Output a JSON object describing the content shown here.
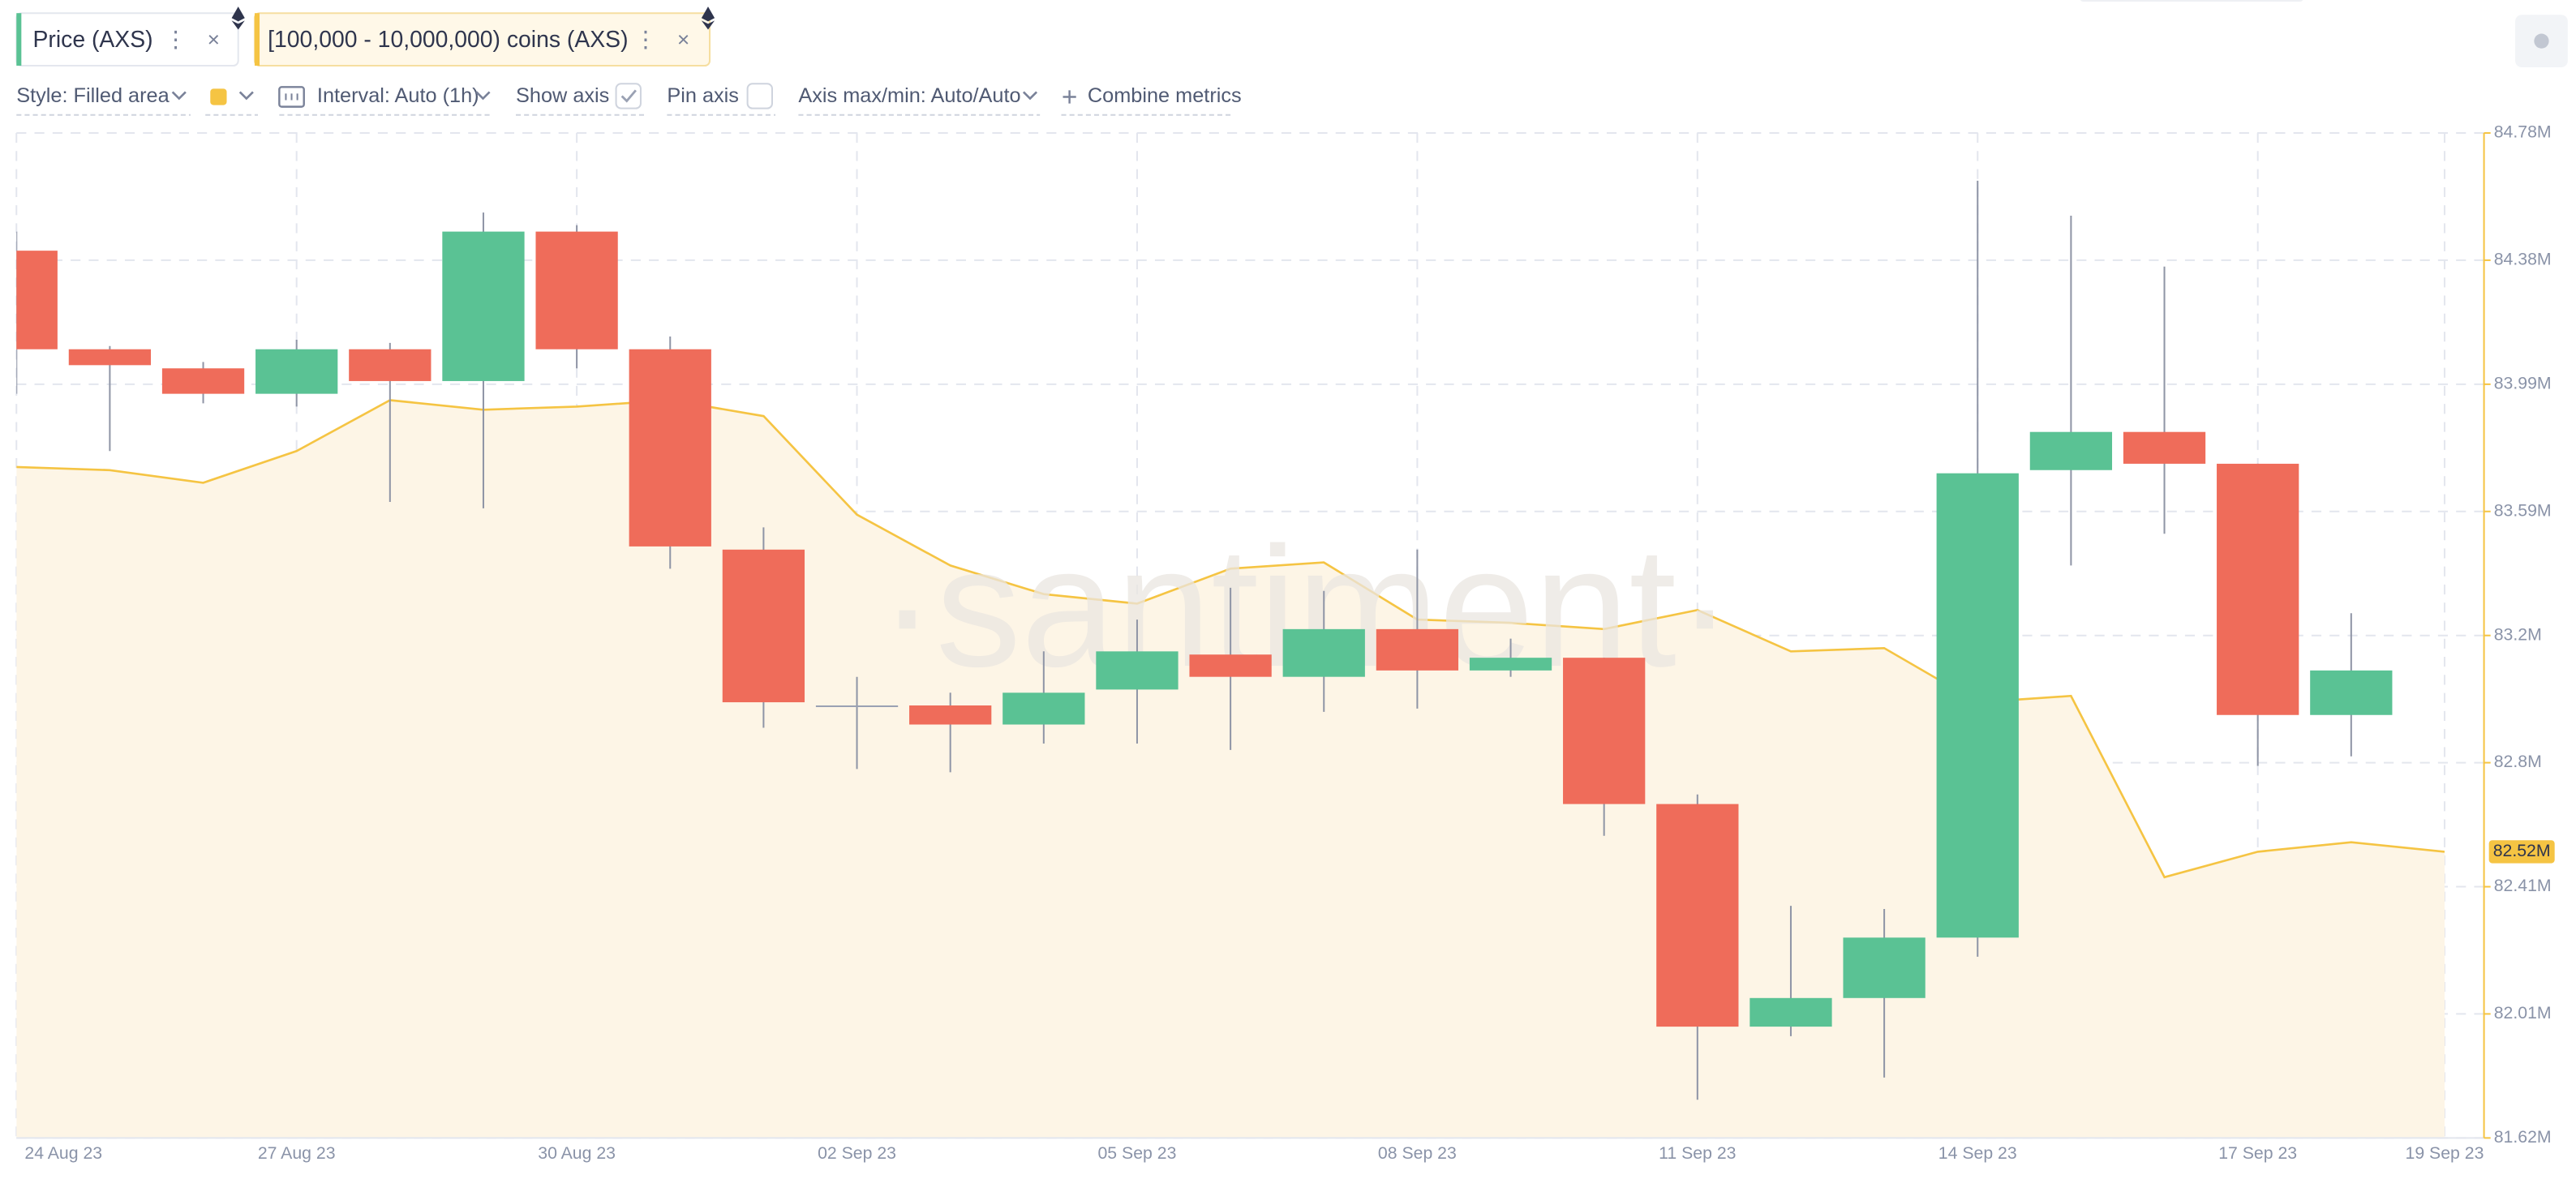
{
  "metrics": [
    {
      "label": "Price (AXS)",
      "color": "#5ac294"
    },
    {
      "label": "[100,000 - 10,000,000) coins (AXS)",
      "color": "#f5c443"
    }
  ],
  "toolbar": {
    "style": "Style: Filled area",
    "interval": "Interval: Auto (1h)",
    "show_axis": "Show axis",
    "show_axis_checked": true,
    "pin_axis": "Pin axis",
    "pin_axis_checked": false,
    "axis_minmax": "Axis max/min: Auto/Auto",
    "combine": "Combine metrics"
  },
  "chart_data": {
    "type": "candlestick",
    "watermark": "·santiment·",
    "x": [
      "2023-08-24",
      "2023-08-25",
      "2023-08-26",
      "2023-08-27",
      "2023-08-28",
      "2023-08-29",
      "2023-08-30",
      "2023-08-31",
      "2023-09-01",
      "2023-09-02",
      "2023-09-03",
      "2023-09-04",
      "2023-09-05",
      "2023-09-06",
      "2023-09-07",
      "2023-09-08",
      "2023-09-09",
      "2023-09-10",
      "2023-09-11",
      "2023-09-12",
      "2023-09-13",
      "2023-09-14",
      "2023-09-15",
      "2023-09-16",
      "2023-09-17",
      "2023-09-18",
      "2023-09-19"
    ],
    "xticks": [
      {
        "value": "2023-08-24",
        "label": "24 Aug 23"
      },
      {
        "value": "2023-08-27",
        "label": "27 Aug 23"
      },
      {
        "value": "2023-08-30",
        "label": "30 Aug 23"
      },
      {
        "value": "2023-09-02",
        "label": "02 Sep 23"
      },
      {
        "value": "2023-09-05",
        "label": "05 Sep 23"
      },
      {
        "value": "2023-09-08",
        "label": "08 Sep 23"
      },
      {
        "value": "2023-09-11",
        "label": "11 Sep 23"
      },
      {
        "value": "2023-09-14",
        "label": "14 Sep 23"
      },
      {
        "value": "2023-09-17",
        "label": "17 Sep 23"
      },
      {
        "value": "2023-09-19",
        "label": "19 Sep 23"
      }
    ],
    "ylim": [
      81.62,
      84.78
    ],
    "yticks": [
      {
        "value": 84.78,
        "label": "84.78M"
      },
      {
        "value": 84.38,
        "label": "84.38M"
      },
      {
        "value": 83.99,
        "label": "83.99M"
      },
      {
        "value": 83.59,
        "label": "83.59M"
      },
      {
        "value": 83.2,
        "label": "83.2M"
      },
      {
        "value": 82.8,
        "label": "82.8M"
      },
      {
        "value": 82.41,
        "label": "82.41M"
      },
      {
        "value": 82.01,
        "label": "82.01M"
      },
      {
        "value": 81.62,
        "label": "81.62M"
      }
    ],
    "grid": true,
    "series": [
      {
        "name": "Price (AXS)",
        "type": "candlestick",
        "up_color": "#5ac294",
        "down_color": "#ef6c5a",
        "open": [
          84.41,
          84.1,
          84.04,
          83.96,
          84.1,
          84.0,
          84.47,
          84.1,
          83.47,
          82.98,
          82.98,
          82.92,
          83.03,
          83.14,
          83.07,
          83.22,
          83.09,
          83.13,
          82.67,
          81.97,
          82.06,
          82.25,
          83.72,
          83.84,
          83.74,
          82.95,
          null
        ],
        "high": [
          84.47,
          84.11,
          84.06,
          84.13,
          84.12,
          84.53,
          84.49,
          84.14,
          83.54,
          83.07,
          83.02,
          83.15,
          83.25,
          83.35,
          83.34,
          83.47,
          83.19,
          83.13,
          82.7,
          82.35,
          82.34,
          84.63,
          84.52,
          84.36,
          83.74,
          83.27,
          null
        ],
        "low": [
          83.96,
          83.78,
          83.93,
          83.92,
          83.62,
          83.6,
          84.04,
          83.41,
          82.91,
          82.78,
          82.77,
          82.86,
          82.86,
          82.84,
          82.96,
          82.97,
          83.07,
          82.57,
          81.74,
          81.94,
          81.81,
          82.19,
          83.42,
          83.52,
          82.79,
          82.82,
          null
        ],
        "close": [
          84.1,
          84.05,
          83.96,
          84.1,
          84.0,
          84.47,
          84.1,
          83.48,
          82.99,
          82.98,
          82.92,
          83.02,
          83.15,
          83.07,
          83.22,
          83.09,
          83.13,
          82.67,
          81.97,
          82.06,
          82.25,
          83.71,
          83.84,
          83.74,
          82.95,
          83.09,
          null
        ]
      },
      {
        "name": "[100,000 - 10,000,000) coins (AXS)",
        "type": "area",
        "color": "#f5c443",
        "fill": "#fdf5e6",
        "values": [
          83.73,
          83.72,
          83.68,
          83.78,
          83.94,
          83.91,
          83.92,
          83.94,
          83.89,
          83.58,
          83.42,
          83.33,
          83.3,
          83.41,
          83.43,
          83.25,
          83.24,
          83.22,
          83.28,
          83.15,
          83.16,
          82.99,
          83.01,
          82.44,
          82.52,
          82.55,
          82.52
        ]
      }
    ],
    "annotations": [
      {
        "value": 82.52,
        "label": "82.52M"
      }
    ]
  }
}
